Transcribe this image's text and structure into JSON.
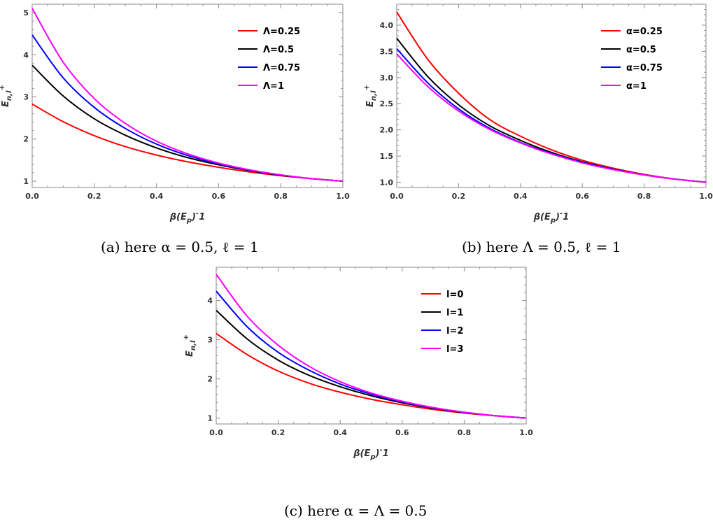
{
  "captions": {
    "a": "(a) here α = 0.5, ℓ = 1",
    "b": "(b) here Λ = 0.5, ℓ = 1",
    "c": "(c) here α = Λ = 0.5"
  },
  "chart_data": [
    {
      "id": "a",
      "type": "line",
      "xlabel": "β(E_p)^-1",
      "ylabel": "E_{n,l}^+",
      "xlim": [
        0,
        1.0
      ],
      "ylim": [
        0.85,
        5.2
      ],
      "xticks": [
        "0.0",
        "0.2",
        "0.4",
        "0.6",
        "0.8",
        "1.0"
      ],
      "yticks": [
        "1",
        "2",
        "3",
        "4",
        "5"
      ],
      "legend_position": "top-right",
      "x": [
        0.0,
        0.1,
        0.2,
        0.3,
        0.4,
        0.5,
        0.6,
        0.7,
        0.8,
        0.9,
        1.0
      ],
      "series": [
        {
          "name": "Λ=0.25",
          "color": "#ff0000",
          "values": [
            2.83,
            2.41,
            2.08,
            1.82,
            1.62,
            1.46,
            1.33,
            1.22,
            1.13,
            1.06,
            1.0
          ]
        },
        {
          "name": "Λ=0.5",
          "color": "#000000",
          "values": [
            3.75,
            3.02,
            2.48,
            2.09,
            1.79,
            1.56,
            1.39,
            1.25,
            1.14,
            1.06,
            1.0
          ]
        },
        {
          "name": "Λ=0.75",
          "color": "#0000ff",
          "values": [
            4.47,
            3.45,
            2.75,
            2.25,
            1.88,
            1.61,
            1.41,
            1.26,
            1.15,
            1.06,
            1.0
          ]
        },
        {
          "name": "Λ=1",
          "color": "#ff00ff",
          "values": [
            5.1,
            3.82,
            2.96,
            2.37,
            1.95,
            1.65,
            1.43,
            1.27,
            1.15,
            1.06,
            1.0
          ]
        }
      ]
    },
    {
      "id": "b",
      "type": "line",
      "xlabel": "β(E_p)^-1",
      "ylabel": "E_{n,l}^+",
      "xlim": [
        0,
        1.0
      ],
      "ylim": [
        0.9,
        4.4
      ],
      "xticks": [
        "0.0",
        "0.2",
        "0.4",
        "0.6",
        "0.8",
        "1.0"
      ],
      "yticks": [
        "1.0",
        "1.5",
        "2.0",
        "2.5",
        "3.0",
        "3.5",
        "4.0"
      ],
      "legend_position": "top-right",
      "x": [
        0.0,
        0.1,
        0.2,
        0.3,
        0.4,
        0.5,
        0.6,
        0.7,
        0.8,
        0.9,
        1.0
      ],
      "series": [
        {
          "name": "α=0.25",
          "color": "#ff0000",
          "values": [
            4.25,
            3.35,
            2.7,
            2.2,
            1.88,
            1.62,
            1.42,
            1.27,
            1.15,
            1.06,
            1.0
          ]
        },
        {
          "name": "α=0.5",
          "color": "#000000",
          "values": [
            3.75,
            3.02,
            2.48,
            2.08,
            1.8,
            1.57,
            1.39,
            1.25,
            1.14,
            1.06,
            1.0
          ]
        },
        {
          "name": "α=0.75",
          "color": "#0000ff",
          "values": [
            3.55,
            2.9,
            2.4,
            2.03,
            1.76,
            1.55,
            1.38,
            1.25,
            1.14,
            1.06,
            1.0
          ]
        },
        {
          "name": "α=1",
          "color": "#ff00ff",
          "values": [
            3.45,
            2.83,
            2.36,
            2.01,
            1.75,
            1.54,
            1.37,
            1.24,
            1.14,
            1.06,
            1.0
          ]
        }
      ]
    },
    {
      "id": "c",
      "type": "line",
      "xlabel": "β(E_p)^-1",
      "ylabel": "E_{n,l}^+",
      "xlim": [
        0,
        1.0
      ],
      "ylim": [
        0.85,
        4.85
      ],
      "xticks": [
        "0.0",
        "0.2",
        "0.4",
        "0.6",
        "0.8",
        "1.0"
      ],
      "yticks": [
        "1",
        "2",
        "3",
        "4"
      ],
      "legend_position": "top-right",
      "x": [
        0.0,
        0.1,
        0.2,
        0.3,
        0.4,
        0.5,
        0.6,
        0.7,
        0.8,
        0.9,
        1.0
      ],
      "series": [
        {
          "name": "l=0",
          "color": "#ff0000",
          "values": [
            3.16,
            2.62,
            2.2,
            1.89,
            1.66,
            1.48,
            1.34,
            1.22,
            1.13,
            1.06,
            1.0
          ]
        },
        {
          "name": "l=1",
          "color": "#000000",
          "values": [
            3.75,
            3.02,
            2.48,
            2.09,
            1.8,
            1.57,
            1.39,
            1.25,
            1.14,
            1.06,
            1.0
          ]
        },
        {
          "name": "l=2",
          "color": "#0000ff",
          "values": [
            4.24,
            3.33,
            2.68,
            2.22,
            1.87,
            1.61,
            1.41,
            1.26,
            1.15,
            1.06,
            1.0
          ]
        },
        {
          "name": "l=3",
          "color": "#ff00ff",
          "values": [
            4.67,
            3.6,
            2.86,
            2.32,
            1.93,
            1.64,
            1.43,
            1.27,
            1.15,
            1.06,
            1.0
          ]
        }
      ]
    }
  ]
}
